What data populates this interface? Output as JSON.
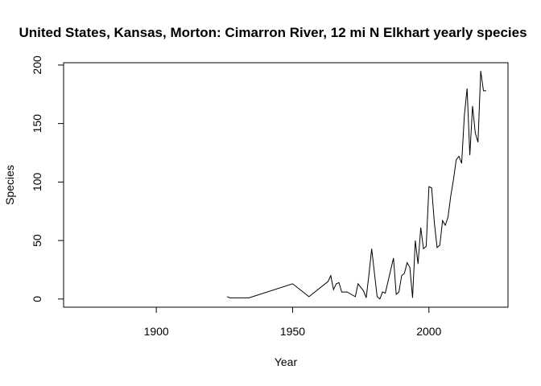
{
  "chart_data": {
    "type": "line",
    "title": "United States, Kansas, Morton: Cimarron River, 12 mi N Elkhart yearly species",
    "xlabel": "Year",
    "ylabel": "Species",
    "xlim": [
      1866,
      2029
    ],
    "ylim": [
      -7,
      202
    ],
    "xticks": [
      1900,
      1950,
      2000
    ],
    "yticks": [
      0,
      50,
      100,
      150,
      200
    ],
    "grid": false,
    "legend": "none",
    "line_color": "#000000",
    "series": [
      {
        "x": [
          1926,
          1927,
          1934,
          1950,
          1956,
          1963,
          1964,
          1965,
          1966,
          1967,
          1968,
          1970,
          1973,
          1974,
          1976,
          1977,
          1978,
          1979,
          1981,
          1982,
          1983,
          1984,
          1987,
          1988,
          1989,
          1990,
          1991,
          1992,
          1993,
          1994,
          1995,
          1996,
          1997,
          1998,
          1999,
          2000,
          2001,
          2002,
          2003,
          2004,
          2005,
          2006,
          2007,
          2008,
          2009,
          2010,
          2011,
          2012,
          2013,
          2014,
          2015,
          2016,
          2017,
          2018,
          2019,
          2020,
          2021
        ],
        "y": [
          2,
          1,
          1,
          13,
          2,
          15,
          20,
          8,
          13,
          14,
          6,
          6,
          2,
          13,
          7,
          1,
          21,
          43,
          2,
          0,
          6,
          5,
          35,
          4,
          6,
          20,
          22,
          31,
          27,
          1,
          50,
          30,
          61,
          43,
          45,
          96,
          95,
          65,
          44,
          46,
          67,
          63,
          70,
          88,
          102,
          119,
          122,
          116,
          157,
          180,
          123,
          165,
          142,
          134,
          195,
          178,
          178
        ]
      }
    ]
  }
}
